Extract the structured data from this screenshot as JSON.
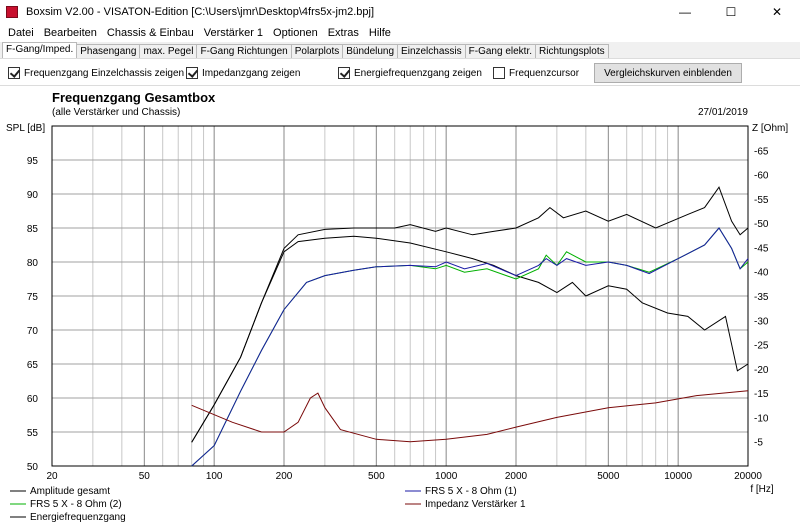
{
  "window": {
    "title": "Boxsim V2.00 - VISATON-Edition [C:\\Users\\jmr\\Desktop\\4frs5x-jm2.bpj]",
    "minimize": "—",
    "maximize": "☐",
    "close": "✕"
  },
  "menu": [
    "Datei",
    "Bearbeiten",
    "Chassis & Einbau",
    "Verstärker 1",
    "Optionen",
    "Extras",
    "Hilfe"
  ],
  "tabs": [
    "F-Gang/Imped.",
    "Phasengang",
    "max. Pegel",
    "F-Gang Richtungen",
    "Polarplots",
    "Bündelung",
    "Einzelchassis",
    "F-Gang elektr.",
    "Richtungsplots"
  ],
  "active_tab": 0,
  "options": {
    "chk1": {
      "label": "Frequenzgang Einzelchassis zeigen",
      "checked": true
    },
    "chk2": {
      "label": "Impedanzgang zeigen",
      "checked": true
    },
    "chk3": {
      "label": "Energiefrequenzgang zeigen",
      "checked": true
    },
    "chk4": {
      "label": "Frequenzcursor",
      "checked": false
    },
    "compare_button": "Vergleichskurven einblenden"
  },
  "colors": {
    "amplitude": "#000000",
    "frs2": "#00b000",
    "energy": "#000000",
    "frs1": "#1a1aa6",
    "impedance": "#7a0a0a",
    "grid": "#a0a0a0"
  },
  "chart_data": {
    "type": "line",
    "title": "Frequenzgang Gesamtbox",
    "subtitle": "(alle Verstärker und Chassis)",
    "date": "27/01/2019",
    "xlabel": "f [Hz]",
    "ylabel_left": "SPL [dB]",
    "ylabel_right": "Z [Ohm]",
    "xscale": "log",
    "xlim": [
      20,
      20000
    ],
    "ylim_left": [
      50,
      100
    ],
    "ylim_right": [
      0,
      70
    ],
    "grid": true,
    "x_tick_labels": [
      "20",
      "50",
      "100",
      "200",
      "500",
      "1000",
      "2000",
      "5000",
      "10000",
      "20000"
    ],
    "y_left_ticks": [
      50,
      55,
      60,
      65,
      70,
      75,
      80,
      85,
      90,
      95
    ],
    "y_right_ticks": [
      5,
      10,
      15,
      20,
      25,
      30,
      35,
      40,
      45,
      50,
      55,
      60,
      65
    ],
    "series": [
      {
        "name": "Amplitude gesamt",
        "axis": "left",
        "points": [
          [
            80,
            53.5
          ],
          [
            100,
            59
          ],
          [
            130,
            66
          ],
          [
            160,
            74
          ],
          [
            200,
            81.5
          ],
          [
            230,
            83
          ],
          [
            300,
            83.5
          ],
          [
            400,
            83.8
          ],
          [
            500,
            83.5
          ],
          [
            700,
            82.8
          ],
          [
            1000,
            81.5
          ],
          [
            1300,
            80.5
          ],
          [
            1600,
            79.5
          ],
          [
            2000,
            78
          ],
          [
            2500,
            77
          ],
          [
            3000,
            75.5
          ],
          [
            3500,
            77
          ],
          [
            4000,
            75
          ],
          [
            5000,
            76.5
          ],
          [
            6000,
            76
          ],
          [
            7000,
            74
          ],
          [
            9000,
            72.5
          ],
          [
            11000,
            72
          ],
          [
            13000,
            70
          ],
          [
            16000,
            72
          ],
          [
            18000,
            64
          ],
          [
            20000,
            65
          ]
        ]
      },
      {
        "name": "FRS 5 X - 8 Ohm (2)",
        "axis": "left",
        "points": [
          [
            80,
            50
          ],
          [
            100,
            53
          ],
          [
            130,
            61
          ],
          [
            160,
            67
          ],
          [
            200,
            73
          ],
          [
            250,
            77
          ],
          [
            300,
            78
          ],
          [
            400,
            78.8
          ],
          [
            500,
            79.3
          ],
          [
            700,
            79.5
          ],
          [
            900,
            79
          ],
          [
            1000,
            79.5
          ],
          [
            1200,
            78.5
          ],
          [
            1500,
            79
          ],
          [
            2000,
            77.5
          ],
          [
            2500,
            79
          ],
          [
            2700,
            81
          ],
          [
            3000,
            79.5
          ],
          [
            3300,
            81.5
          ],
          [
            4000,
            80
          ],
          [
            5000,
            80
          ],
          [
            6000,
            79.5
          ],
          [
            7500,
            78.5
          ],
          [
            10000,
            80.5
          ],
          [
            13000,
            82.5
          ],
          [
            15000,
            85
          ],
          [
            17000,
            82
          ],
          [
            18500,
            79
          ],
          [
            20000,
            80
          ]
        ]
      },
      {
        "name": "Energiefrequenzgang",
        "axis": "left",
        "points": [
          [
            80,
            53.5
          ],
          [
            100,
            59
          ],
          [
            130,
            66
          ],
          [
            160,
            74
          ],
          [
            200,
            82
          ],
          [
            230,
            84
          ],
          [
            300,
            84.8
          ],
          [
            400,
            85
          ],
          [
            600,
            85
          ],
          [
            700,
            85.5
          ],
          [
            900,
            84.5
          ],
          [
            1000,
            85
          ],
          [
            1300,
            84
          ],
          [
            1600,
            84.5
          ],
          [
            2000,
            85
          ],
          [
            2500,
            86.5
          ],
          [
            2800,
            88
          ],
          [
            3200,
            86.5
          ],
          [
            4000,
            87.5
          ],
          [
            5000,
            86
          ],
          [
            6000,
            87
          ],
          [
            8000,
            85
          ],
          [
            11000,
            87
          ],
          [
            13000,
            88
          ],
          [
            15000,
            91
          ],
          [
            17000,
            86
          ],
          [
            18500,
            84
          ],
          [
            20000,
            85
          ]
        ]
      },
      {
        "name": "FRS 5 X - 8 Ohm (1)",
        "axis": "left",
        "points": [
          [
            80,
            50
          ],
          [
            100,
            53
          ],
          [
            130,
            61
          ],
          [
            160,
            67
          ],
          [
            200,
            73
          ],
          [
            250,
            77
          ],
          [
            300,
            78
          ],
          [
            400,
            78.8
          ],
          [
            500,
            79.3
          ],
          [
            700,
            79.5
          ],
          [
            900,
            79.3
          ],
          [
            1000,
            80
          ],
          [
            1200,
            79
          ],
          [
            1500,
            79.8
          ],
          [
            2000,
            78
          ],
          [
            2500,
            79.5
          ],
          [
            2700,
            80.5
          ],
          [
            3000,
            79.5
          ],
          [
            3300,
            80.5
          ],
          [
            4000,
            79.5
          ],
          [
            5000,
            80
          ],
          [
            6000,
            79.5
          ],
          [
            7500,
            78.3
          ],
          [
            10000,
            80.5
          ],
          [
            13000,
            82.5
          ],
          [
            15000,
            85
          ],
          [
            17000,
            82
          ],
          [
            18500,
            79
          ],
          [
            20000,
            80.5
          ]
        ]
      },
      {
        "name": "Impedanz Verstärker 1",
        "axis": "right",
        "points": [
          [
            80,
            12.5
          ],
          [
            120,
            9
          ],
          [
            160,
            7
          ],
          [
            200,
            7
          ],
          [
            230,
            9
          ],
          [
            260,
            14
          ],
          [
            280,
            15
          ],
          [
            300,
            12
          ],
          [
            350,
            7.5
          ],
          [
            500,
            5.5
          ],
          [
            700,
            5
          ],
          [
            1000,
            5.5
          ],
          [
            1500,
            6.5
          ],
          [
            2000,
            8
          ],
          [
            3000,
            10
          ],
          [
            5000,
            12
          ],
          [
            8000,
            13
          ],
          [
            12000,
            14.5
          ],
          [
            20000,
            15.5
          ]
        ]
      }
    ]
  }
}
